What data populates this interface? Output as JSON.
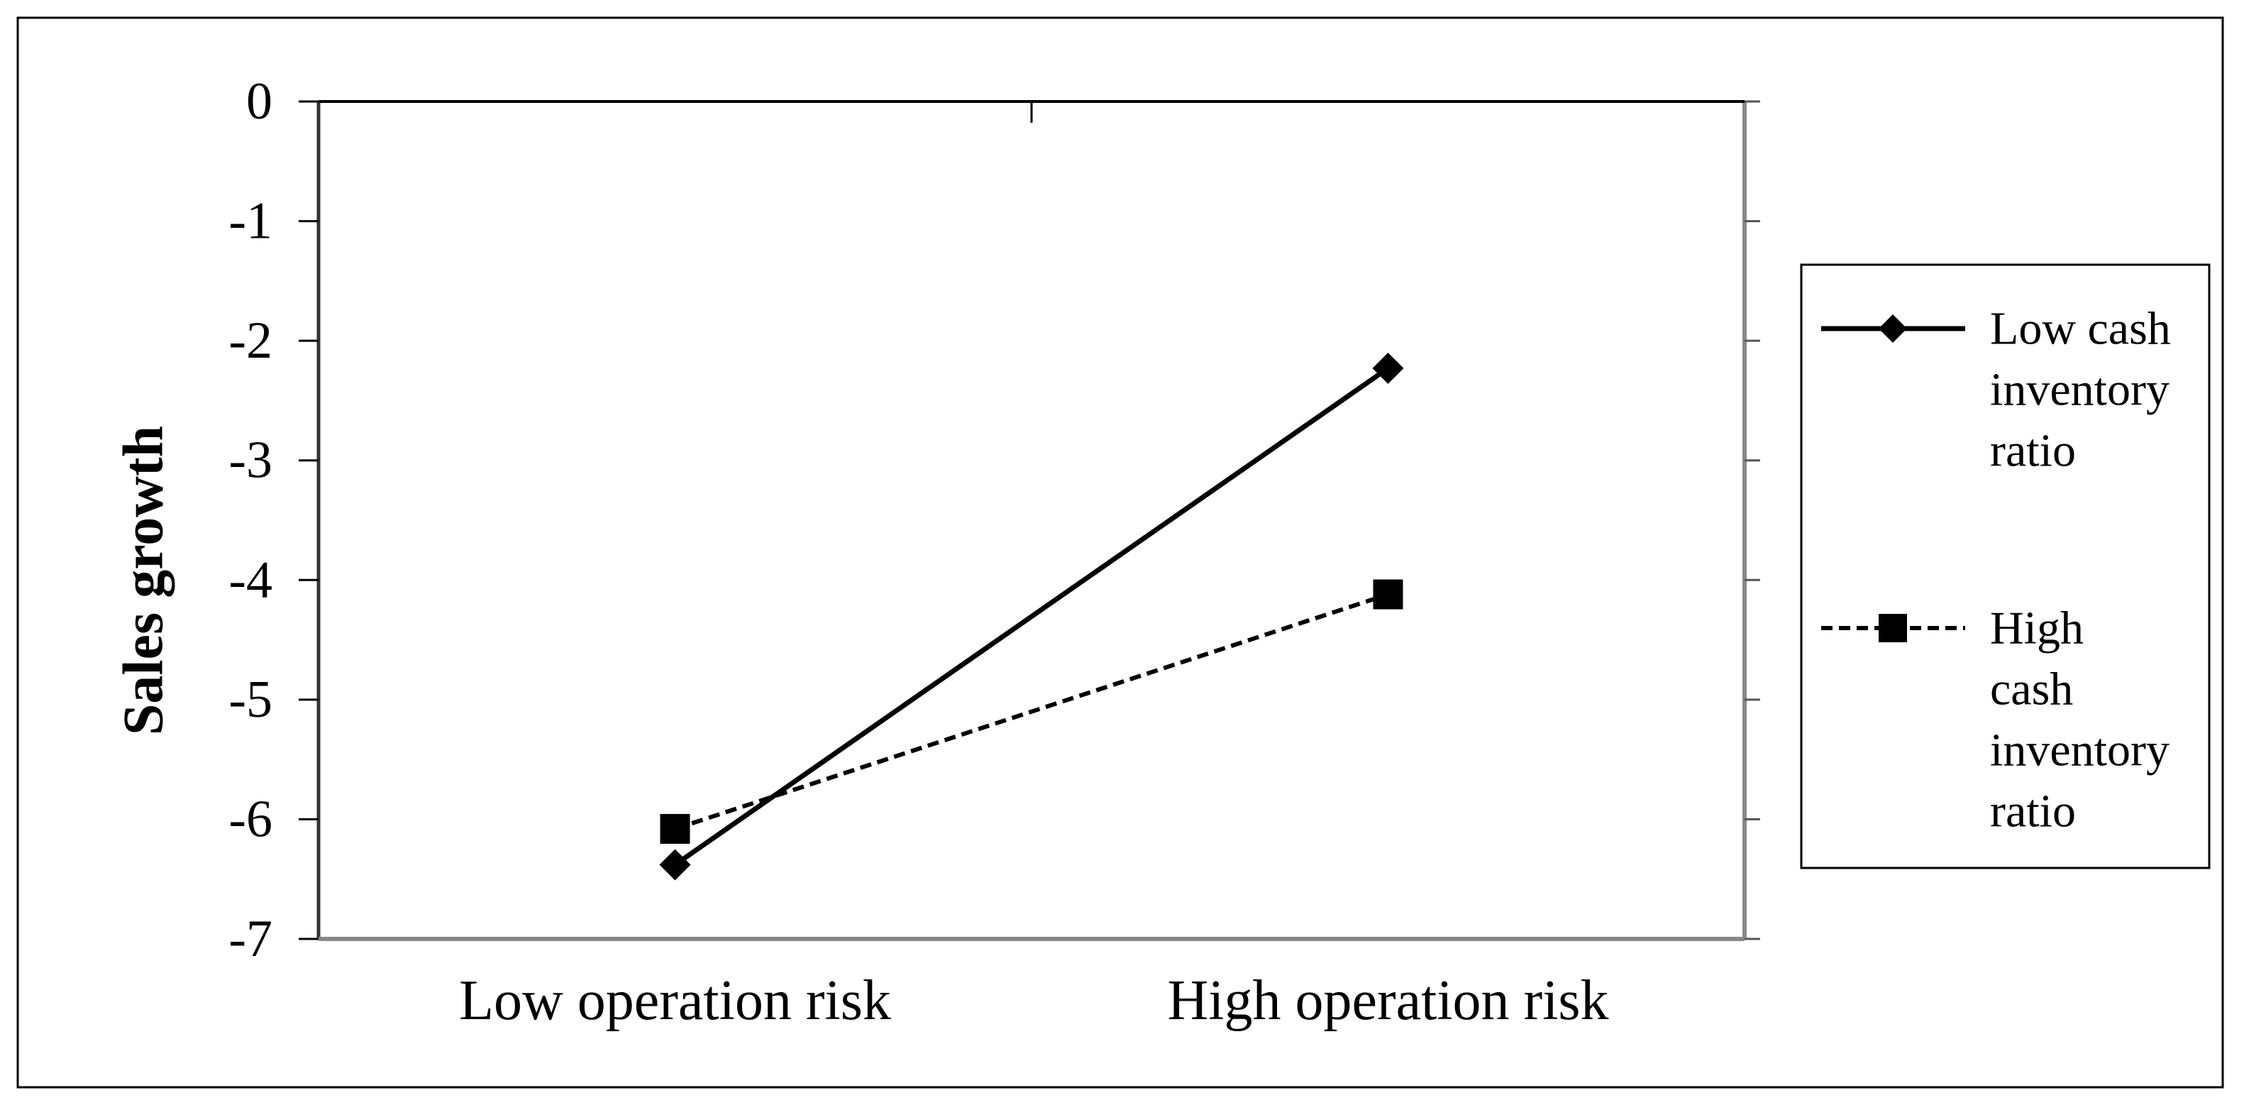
{
  "chart_data": {
    "type": "line",
    "title": "",
    "xlabel": "",
    "ylabel": "Sales growth",
    "categories": [
      "Low operation risk",
      "High operation risk"
    ],
    "ylim": [
      -7,
      0
    ],
    "yticks": [
      0,
      -1,
      -2,
      -3,
      -4,
      -5,
      -6,
      -7
    ],
    "grid": false,
    "legend_position": "right",
    "series": [
      {
        "name": "Low cash inventory ratio",
        "legend_lines": [
          "Low cash",
          "inventory",
          "ratio"
        ],
        "values": [
          -6.38,
          -2.23
        ],
        "line_style": "solid",
        "marker": "diamond",
        "color": "#000000"
      },
      {
        "name": "High cash inventory ratio",
        "legend_lines": [
          "High",
          "cash",
          "inventory",
          "ratio"
        ],
        "values": [
          -6.08,
          -4.12
        ],
        "line_style": "dashed",
        "marker": "square",
        "color": "#000000"
      }
    ]
  }
}
